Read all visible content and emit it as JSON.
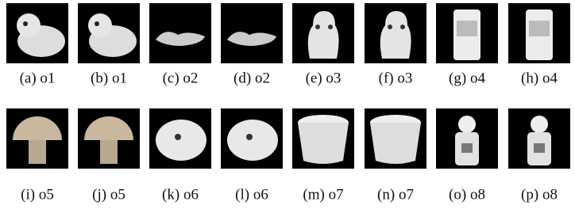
{
  "figure": {
    "panels": [
      "(a) o1",
      "(b) o1",
      "(c) o2",
      "(d) o2",
      "(e) o3",
      "(f) o3",
      "(g) o4",
      "(h) o4",
      "(i) o5",
      "(j) o5",
      "(k) o6",
      "(l) o6",
      "(m) o7",
      "(n) o7",
      "(o) o8",
      "(p) o8"
    ]
  }
}
